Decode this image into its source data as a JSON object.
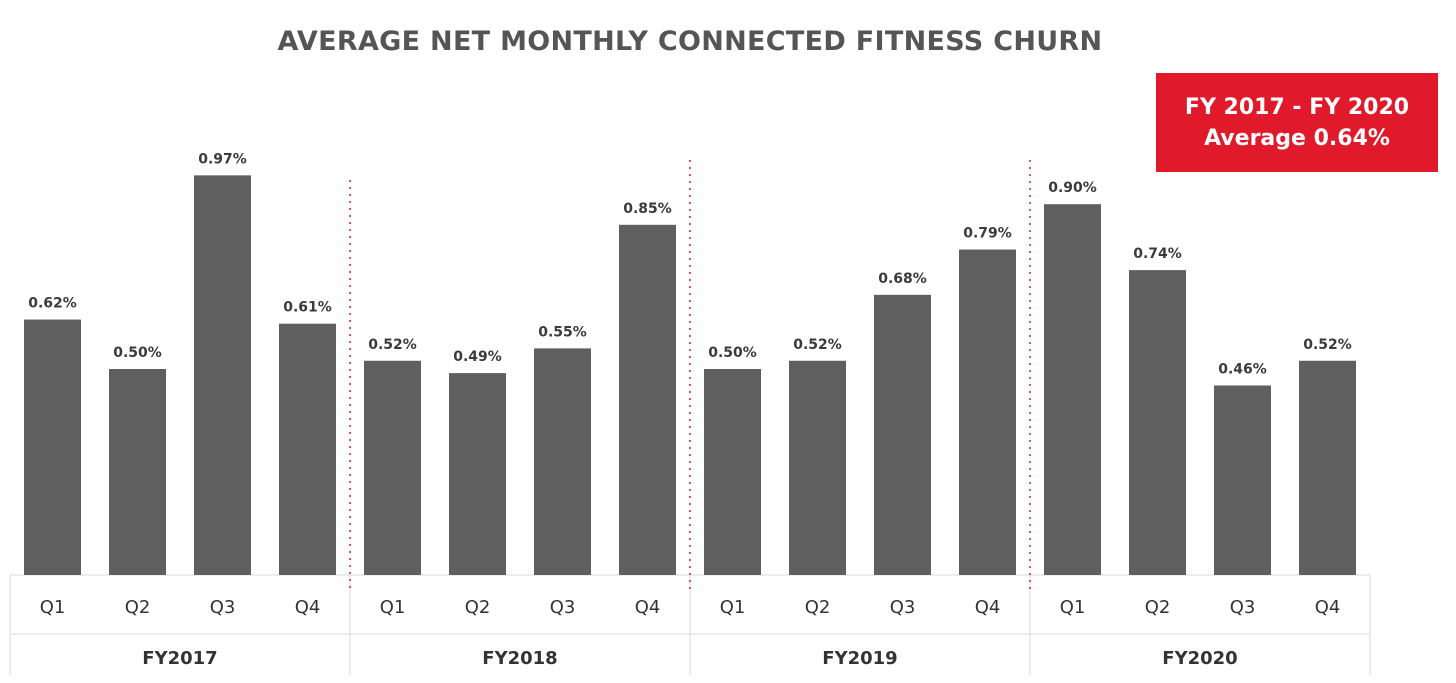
{
  "chart_data": {
    "type": "bar",
    "title": "AVERAGE NET MONTHLY CONNECTED FITNESS CHURN",
    "xlabel": "",
    "ylabel": "",
    "value_format": "percent",
    "groups": [
      {
        "name": "FY2017",
        "categories": [
          "Q1",
          "Q2",
          "Q3",
          "Q4"
        ],
        "values": [
          0.62,
          0.5,
          0.97,
          0.61
        ],
        "labels": [
          "0.62%",
          "0.50%",
          "0.97%",
          "0.61%"
        ]
      },
      {
        "name": "FY2018",
        "categories": [
          "Q1",
          "Q2",
          "Q3",
          "Q4"
        ],
        "values": [
          0.52,
          0.49,
          0.55,
          0.85
        ],
        "labels": [
          "0.52%",
          "0.49%",
          "0.55%",
          "0.85%"
        ]
      },
      {
        "name": "FY2019",
        "categories": [
          "Q1",
          "Q2",
          "Q3",
          "Q4"
        ],
        "values": [
          0.5,
          0.52,
          0.68,
          0.79
        ],
        "labels": [
          "0.50%",
          "0.52%",
          "0.68%",
          "0.79%"
        ]
      },
      {
        "name": "FY2020",
        "categories": [
          "Q1",
          "Q2",
          "Q3",
          "Q4"
        ],
        "values": [
          0.9,
          0.74,
          0.46,
          0.52
        ],
        "labels": [
          "0.90%",
          "0.74%",
          "0.46%",
          "0.52%"
        ]
      }
    ],
    "ylim": [
      0,
      1.0
    ],
    "grid": false,
    "legend": "none",
    "annotation": {
      "line1": "FY 2017 - FY 2020",
      "line2": "Average 0.64%"
    },
    "colors": {
      "bar": "#5f5f5f",
      "callout": "#e01a2b",
      "divider": "#e01a2b",
      "axis": "#d9d9d9"
    }
  }
}
